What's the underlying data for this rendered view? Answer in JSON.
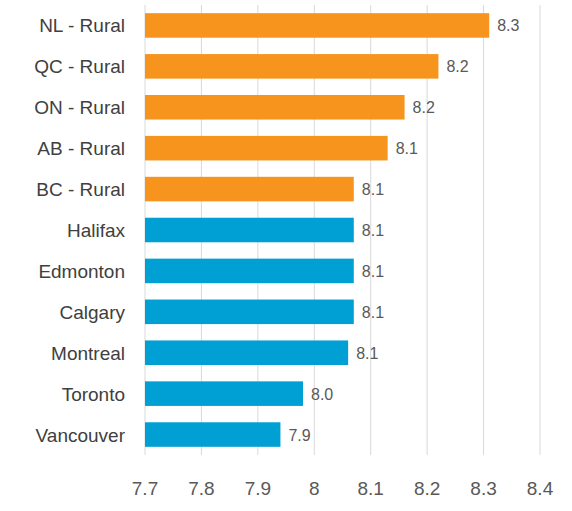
{
  "chart_data": {
    "type": "bar",
    "orientation": "horizontal",
    "categories": [
      "NL - Rural",
      "QC - Rural",
      "ON - Rural",
      "AB - Rural",
      "BC - Rural",
      "Halifax",
      "Edmonton",
      "Calgary",
      "Montreal",
      "Toronto",
      "Vancouver"
    ],
    "values": [
      8.31,
      8.22,
      8.16,
      8.13,
      8.07,
      8.07,
      8.07,
      8.07,
      8.06,
      7.98,
      7.94
    ],
    "value_labels": [
      "8.3",
      "8.2",
      "8.2",
      "8.1",
      "8.1",
      "8.1",
      "8.1",
      "8.1",
      "8.1",
      "8.0",
      "7.9"
    ],
    "colors": [
      "#f7941d",
      "#f7941d",
      "#f7941d",
      "#f7941d",
      "#f7941d",
      "#009fd4",
      "#009fd4",
      "#009fd4",
      "#009fd4",
      "#009fd4",
      "#009fd4"
    ],
    "xlim": [
      7.7,
      8.4
    ],
    "xticks": [
      7.7,
      7.8,
      7.9,
      8,
      8.1,
      8.2,
      8.3,
      8.4
    ],
    "grid": true,
    "data_labels": true
  }
}
